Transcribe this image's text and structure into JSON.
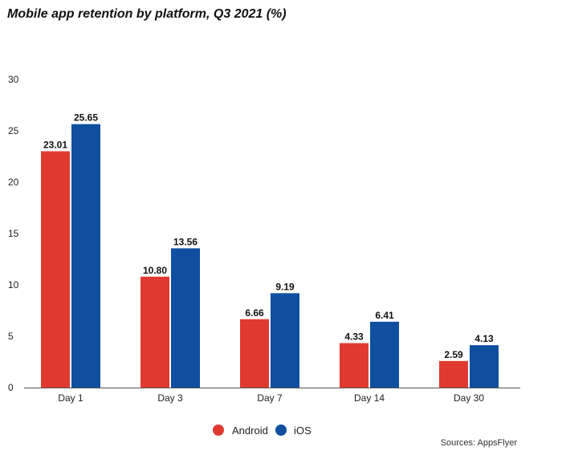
{
  "title": "Mobile app retention by platform, Q3 2021 (%)",
  "source": "Sources: AppsFlyer",
  "colors": {
    "android": "#e03a30",
    "ios": "#0f4fa0"
  },
  "chart_data": {
    "type": "bar",
    "title": "Mobile app retention by platform, Q3 2021 (%)",
    "categories": [
      "Day 1",
      "Day 3",
      "Day 7",
      "Day 14",
      "Day 30"
    ],
    "series": [
      {
        "name": "Android",
        "color": "#e03a30",
        "values": [
          23.01,
          10.8,
          6.66,
          4.33,
          2.59
        ],
        "labels": [
          "23.01",
          "10.80",
          "6.66",
          "4.33",
          "2.59"
        ]
      },
      {
        "name": "iOS",
        "color": "#0f4fa0",
        "values": [
          25.65,
          13.56,
          9.19,
          6.41,
          4.13
        ],
        "labels": [
          "25.65",
          "13.56",
          "9.19",
          "6.41",
          "4.13"
        ]
      }
    ],
    "yticks": [
      0,
      5,
      10,
      15,
      20,
      25,
      30
    ],
    "ylim": [
      0,
      30
    ],
    "xlabel": "",
    "ylabel": "",
    "grid": false,
    "legend_position": "bottom"
  }
}
